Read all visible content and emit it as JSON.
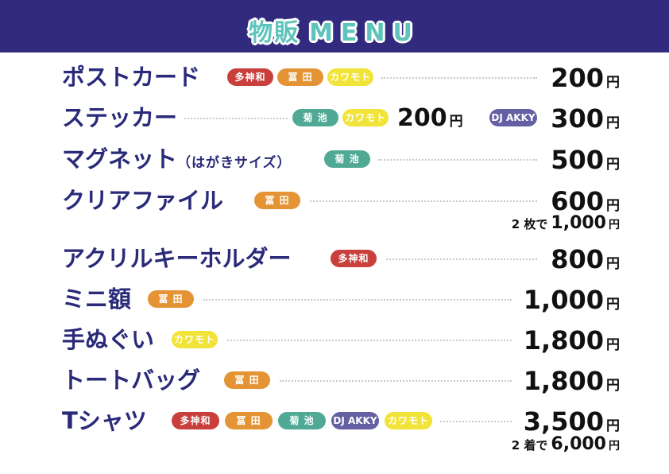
{
  "header": {
    "title_jp": "物販",
    "title_en": "MENU",
    "colors": {
      "bar": "#322a7e",
      "title": "#5ec4bb"
    }
  },
  "tags": {
    "tamikazu": "多神和",
    "tomita": "冨 田",
    "kawamoto": "カワモト",
    "kikuchi": "菊 池",
    "djakky": "DJ AKKY"
  },
  "currency": "円",
  "items": [
    {
      "name": "ポストカード",
      "price": "200"
    },
    {
      "name": "ステッカー",
      "price_a": "200",
      "price": "300"
    },
    {
      "name": "マグネット",
      "sub": "（はがきサイズ）",
      "price": "500"
    },
    {
      "name": "クリアファイル",
      "price": "600",
      "note_label": "2 枚で",
      "note_price": "1,000"
    },
    {
      "name": "アクリルキーホルダー",
      "price": "800"
    },
    {
      "name": "ミニ額",
      "price": "1,000"
    },
    {
      "name": "手ぬぐい",
      "price": "1,800"
    },
    {
      "name": "トートバッグ",
      "price": "1,800"
    },
    {
      "name": "Tシャツ",
      "price": "3,500",
      "note_label": "2 着で",
      "note_price": "6,000"
    }
  ]
}
